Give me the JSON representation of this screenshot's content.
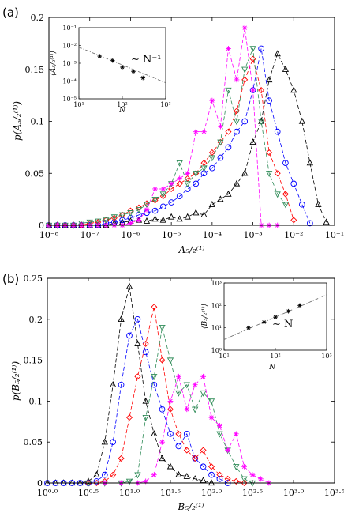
{
  "chart_data": [
    {
      "panel": "(a)",
      "type": "line",
      "xscale": "log",
      "xlim": [
        1e-08,
        0.1
      ],
      "ylim": [
        0,
        0.2
      ],
      "xlabel": "A₅/₂⁽¹⁾",
      "ylabel": "p(A₅/₂⁽¹⁾)",
      "x_tick_labels": [
        "10⁻⁸",
        "10⁻⁷",
        "10⁻⁶",
        "10⁻⁵",
        "10⁻⁴",
        "10⁻³",
        "10⁻²",
        "10⁻¹"
      ],
      "y_tick_labels": [
        "0",
        "0.05",
        "0.1",
        "0.15",
        "0.2"
      ],
      "grid": false,
      "series": [
        {
          "color": "#000000",
          "marker": "triangle-up",
          "x": [
            1e-08,
            1.6e-08,
            2.5e-08,
            4e-08,
            6.3e-08,
            1e-07,
            1.6e-07,
            2.5e-07,
            4e-07,
            6.3e-07,
            1e-06,
            1.6e-06,
            2.5e-06,
            4e-06,
            6.3e-06,
            1e-05,
            1.6e-05,
            2.5e-05,
            4e-05,
            6.3e-05,
            0.0001,
            0.00016,
            0.00025,
            0.0004,
            0.00063,
            0.001,
            0.0016,
            0.0025,
            0.004,
            0.0063,
            0.01,
            0.016,
            0.025,
            0.04,
            0.063
          ],
          "y": [
            0,
            0,
            0,
            0,
            0,
            0,
            0,
            0,
            0.002,
            0.003,
            0.004,
            0.005,
            0.004,
            0.006,
            0.005,
            0.008,
            0.006,
            0.008,
            0.012,
            0.01,
            0.02,
            0.025,
            0.03,
            0.04,
            0.05,
            0.08,
            0.1,
            0.14,
            0.165,
            0.15,
            0.13,
            0.1,
            0.06,
            0.02,
            0.003
          ]
        },
        {
          "color": "#0000ff",
          "marker": "circle",
          "x": [
            1e-08,
            1.6e-08,
            2.5e-08,
            4e-08,
            6.3e-08,
            1e-07,
            1.6e-07,
            2.5e-07,
            4e-07,
            6.3e-07,
            1e-06,
            1.6e-06,
            2.5e-06,
            4e-06,
            6.3e-06,
            1e-05,
            1.6e-05,
            2.5e-05,
            4e-05,
            6.3e-05,
            0.0001,
            0.00016,
            0.00025,
            0.0004,
            0.00063,
            0.001,
            0.0016,
            0.0025,
            0.004,
            0.0063,
            0.01,
            0.016,
            0.025
          ],
          "y": [
            0,
            0,
            0,
            0,
            0,
            0,
            0,
            0.002,
            0.003,
            0.005,
            0.007,
            0.01,
            0.012,
            0.014,
            0.018,
            0.022,
            0.028,
            0.035,
            0.04,
            0.05,
            0.055,
            0.065,
            0.075,
            0.09,
            0.1,
            0.13,
            0.17,
            0.12,
            0.09,
            0.06,
            0.04,
            0.02,
            0.002
          ]
        },
        {
          "color": "#ff0000",
          "marker": "diamond",
          "x": [
            1e-08,
            1.6e-08,
            2.5e-08,
            4e-08,
            6.3e-08,
            1e-07,
            1.6e-07,
            2.5e-07,
            4e-07,
            6.3e-07,
            1e-06,
            1.6e-06,
            2.5e-06,
            4e-06,
            6.3e-06,
            1e-05,
            1.6e-05,
            2.5e-05,
            4e-05,
            6.3e-05,
            0.0001,
            0.00016,
            0.00025,
            0.0004,
            0.00063,
            0.001,
            0.0016,
            0.0025,
            0.004,
            0.0063,
            0.01
          ],
          "y": [
            0,
            0,
            0,
            0,
            0,
            0.002,
            0.003,
            0.005,
            0.007,
            0.01,
            0.014,
            0.017,
            0.021,
            0.024,
            0.028,
            0.035,
            0.04,
            0.045,
            0.05,
            0.06,
            0.07,
            0.08,
            0.09,
            0.11,
            0.14,
            0.16,
            0.13,
            0.07,
            0.05,
            0.03,
            0.005
          ]
        },
        {
          "color": "#2e8b57",
          "marker": "triangle-down",
          "x": [
            1e-08,
            1.6e-08,
            2.5e-08,
            4e-08,
            6.3e-08,
            1e-07,
            1.6e-07,
            2.5e-07,
            4e-07,
            6.3e-07,
            1e-06,
            1.6e-06,
            2.5e-06,
            4e-06,
            6.3e-06,
            1e-05,
            1.6e-05,
            2.5e-05,
            4e-05,
            6.3e-05,
            0.0001,
            0.00016,
            0.00025,
            0.0004,
            0.00063,
            0.001,
            0.0016,
            0.0025,
            0.004,
            0.0063
          ],
          "y": [
            0,
            0,
            0,
            0,
            0.002,
            0.003,
            0.004,
            0.005,
            0.008,
            0.01,
            0.012,
            0.015,
            0.02,
            0.025,
            0.03,
            0.04,
            0.06,
            0.04,
            0.05,
            0.055,
            0.065,
            0.08,
            0.13,
            0.1,
            0.15,
            0.17,
            0.1,
            0.05,
            0.03,
            0.02
          ]
        },
        {
          "color": "#ff00ff",
          "marker": "asterisk",
          "x": [
            1e-08,
            1.6e-08,
            2.5e-08,
            4e-08,
            6.3e-08,
            1e-07,
            1.6e-07,
            2.5e-07,
            4e-07,
            6.3e-07,
            1e-06,
            1.6e-06,
            2.5e-06,
            4e-06,
            6.3e-06,
            1e-05,
            1.6e-05,
            2.5e-05,
            4e-05,
            6.3e-05,
            0.0001,
            0.00016,
            0.00025,
            0.0004,
            0.00063,
            0.001,
            0.0016,
            0.0025,
            0.004
          ],
          "y": [
            0,
            0,
            0,
            0,
            0,
            0,
            0,
            0,
            0,
            0,
            0.002,
            0.005,
            0.015,
            0.035,
            0.035,
            0.04,
            0.045,
            0.05,
            0.09,
            0.09,
            0.12,
            0.095,
            0.17,
            0.14,
            0.19,
            0.13,
            0.0,
            0.0,
            0.0
          ]
        }
      ],
      "inset": {
        "type": "scatter",
        "xscale": "log",
        "yscale": "log",
        "xlim": [
          10,
          1000
        ],
        "ylim": [
          1e-05,
          0.1
        ],
        "xlabel": "N",
        "ylabel": "⟨A₅/₂⁽¹⁾⟩",
        "x_tick_labels": [
          "10¹",
          "10²",
          "10³"
        ],
        "y_tick_labels": [
          "10⁻⁵",
          "10⁻⁴",
          "10⁻³",
          "10⁻²",
          "10⁻¹"
        ],
        "points": {
          "x": [
            30,
            60,
            100,
            180,
            300
          ],
          "y": [
            0.0025,
            0.0014,
            0.0006,
            0.00035,
            0.00015
          ]
        },
        "fit": {
          "x": [
            10,
            1000
          ],
          "y": [
            0.008,
            8e-05
          ]
        },
        "annotation": "∼ N⁻¹"
      }
    },
    {
      "panel": "(b)",
      "type": "line",
      "xscale": "log",
      "xlim": [
        1,
        3162.28
      ],
      "ylim": [
        0,
        0.25
      ],
      "xlabel": "B₅/₂⁽¹⁾",
      "ylabel": "p(B₅/₂⁽¹⁾)",
      "x_tick_labels": [
        "10⁰·⁰",
        "10⁰·⁵",
        "10¹·⁰",
        "10¹·⁵",
        "10²·⁰",
        "10²·⁵",
        "10³·⁰",
        "10³·⁵"
      ],
      "y_tick_labels": [
        "0",
        "0.05",
        "0.1",
        "0.15",
        "0.2",
        "0.25"
      ],
      "grid": false,
      "series": [
        {
          "color": "#000000",
          "marker": "triangle-up",
          "x": [
            1,
            1.26,
            1.58,
            2,
            2.51,
            3.16,
            3.98,
            5.01,
            6.31,
            7.94,
            10,
            12.6,
            15.8,
            20,
            25.1,
            31.6,
            39.8,
            50.1,
            63.1,
            79.4,
            100
          ],
          "y": [
            0,
            0,
            0,
            0,
            0,
            0.002,
            0.01,
            0.05,
            0.12,
            0.2,
            0.24,
            0.17,
            0.1,
            0.06,
            0.03,
            0.02,
            0.01,
            0.008,
            0.005,
            0.003,
            0
          ]
        },
        {
          "color": "#0000ff",
          "marker": "circle",
          "x": [
            1,
            1.26,
            1.58,
            2,
            2.51,
            3.16,
            3.98,
            5.01,
            6.31,
            7.94,
            10,
            12.6,
            15.8,
            20,
            25.1,
            31.6,
            39.8,
            50.1,
            63.1,
            79.4,
            100,
            126,
            158
          ],
          "y": [
            0,
            0,
            0,
            0,
            0,
            0,
            0.002,
            0.01,
            0.05,
            0.12,
            0.18,
            0.2,
            0.16,
            0.12,
            0.09,
            0.06,
            0.045,
            0.06,
            0.03,
            0.02,
            0.01,
            0.005,
            0
          ]
        },
        {
          "color": "#ff0000",
          "marker": "diamond",
          "x": [
            3.16,
            3.98,
            5.01,
            6.31,
            7.94,
            10,
            12.6,
            15.8,
            20,
            25.1,
            31.6,
            39.8,
            50.1,
            63.1,
            79.4,
            100,
            126,
            158,
            200,
            251
          ],
          "y": [
            0,
            0,
            0.002,
            0.01,
            0.03,
            0.08,
            0.13,
            0.17,
            0.215,
            0.15,
            0.09,
            0.06,
            0.04,
            0.03,
            0.04,
            0.02,
            0.01,
            0.005,
            0.002,
            0
          ]
        },
        {
          "color": "#2e8b57",
          "marker": "triangle-down",
          "x": [
            3.16,
            5.01,
            7.94,
            10,
            12.6,
            15.8,
            20,
            25.1,
            31.6,
            39.8,
            50.1,
            63.1,
            79.4,
            100,
            126,
            158,
            200,
            251,
            316
          ],
          "y": [
            0,
            0,
            0,
            0.002,
            0.01,
            0.08,
            0.13,
            0.19,
            0.15,
            0.11,
            0.12,
            0.09,
            0.11,
            0.1,
            0.06,
            0.04,
            0.02,
            0.005,
            0
          ]
        },
        {
          "color": "#ff00ff",
          "marker": "asterisk",
          "x": [
            5.01,
            7.94,
            12.6,
            15.8,
            20,
            25.1,
            31.6,
            39.8,
            50.1,
            63.1,
            79.4,
            100,
            126,
            158,
            200,
            251,
            316,
            398,
            501
          ],
          "y": [
            0,
            0,
            0,
            0.002,
            0.01,
            0.05,
            0.1,
            0.13,
            0.09,
            0.12,
            0.13,
            0.08,
            0.07,
            0.04,
            0.06,
            0.02,
            0.01,
            0.005,
            0
          ]
        }
      ],
      "inset": {
        "type": "scatter",
        "xscale": "log",
        "yscale": "log",
        "xlim": [
          10,
          1000
        ],
        "ylim": [
          1,
          1000
        ],
        "xlabel": "N",
        "ylabel": "⟨B₅/₂⁽¹⁾⟩",
        "x_tick_labels": [
          "10¹",
          "10²",
          "10³"
        ],
        "y_tick_labels": [
          "10⁰",
          "10¹",
          "10²",
          "10³"
        ],
        "points": {
          "x": [
            30,
            60,
            100,
            180,
            300
          ],
          "y": [
            10,
            18,
            30,
            55,
            100
          ]
        },
        "fit": {
          "x": [
            10,
            1000
          ],
          "y": [
            3,
            300
          ]
        },
        "annotation": "∼ N"
      }
    }
  ]
}
